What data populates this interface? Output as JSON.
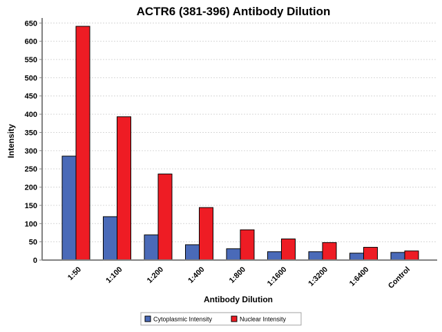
{
  "chart_data": {
    "type": "bar",
    "title": "ACTR6 (381-396) Antibody Dilution",
    "xlabel": "Antibody Dilution",
    "ylabel": "Intensity",
    "ylim": [
      0,
      650
    ],
    "yticks": [
      0,
      50,
      100,
      150,
      200,
      250,
      300,
      350,
      400,
      450,
      500,
      550,
      600,
      650
    ],
    "grid": true,
    "legend_position": "bottom-center",
    "categories": [
      "1:50",
      "1:100",
      "1:200",
      "1:400",
      "1:800",
      "1:1600",
      "1:3200",
      "1:6400",
      "Control"
    ],
    "series": [
      {
        "name": "Cytoplasmic Intensity",
        "color": "#4a6ab8",
        "values": [
          285,
          119,
          69,
          42,
          31,
          23,
          23,
          19,
          21
        ]
      },
      {
        "name": "Nuclear Intensity",
        "color": "#ee1c24",
        "values": [
          641,
          393,
          236,
          144,
          83,
          58,
          48,
          35,
          25
        ]
      }
    ]
  }
}
